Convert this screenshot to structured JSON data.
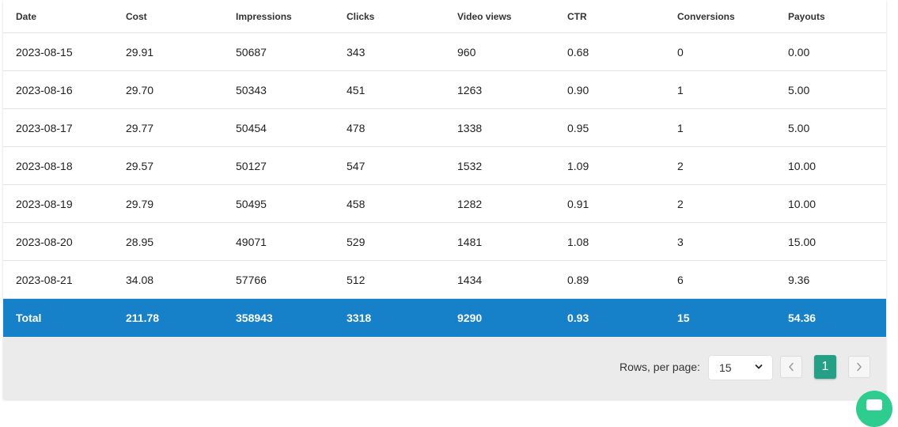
{
  "table": {
    "columns": [
      "Date",
      "Cost",
      "Impressions",
      "Clicks",
      "Video views",
      "CTR",
      "Conversions",
      "Payouts"
    ],
    "rows": [
      [
        "2023-08-15",
        "29.91",
        "50687",
        "343",
        "960",
        "0.68",
        "0",
        "0.00"
      ],
      [
        "2023-08-16",
        "29.70",
        "50343",
        "451",
        "1263",
        "0.90",
        "1",
        "5.00"
      ],
      [
        "2023-08-17",
        "29.77",
        "50454",
        "478",
        "1338",
        "0.95",
        "1",
        "5.00"
      ],
      [
        "2023-08-18",
        "29.57",
        "50127",
        "547",
        "1532",
        "1.09",
        "2",
        "10.00"
      ],
      [
        "2023-08-19",
        "29.79",
        "50495",
        "458",
        "1282",
        "0.91",
        "2",
        "10.00"
      ],
      [
        "2023-08-20",
        "28.95",
        "49071",
        "529",
        "1481",
        "1.08",
        "3",
        "15.00"
      ],
      [
        "2023-08-21",
        "34.08",
        "57766",
        "512",
        "1434",
        "0.89",
        "6",
        "9.36"
      ]
    ],
    "total": [
      "Total",
      "211.78",
      "358943",
      "3318",
      "9290",
      "0.93",
      "15",
      "54.36"
    ]
  },
  "pagination": {
    "rows_per_page_label": "Rows, per page:",
    "rows_per_page_value": "15",
    "current_page": "1",
    "prev_icon": "chevron-left-icon",
    "next_icon": "chevron-right-icon"
  },
  "chat": {
    "icon": "chat-icon",
    "color": "#2ecc8f"
  },
  "colors": {
    "total_row": "#1681c8",
    "current_page": "#23a085",
    "footer_bg": "#ebebeb"
  }
}
